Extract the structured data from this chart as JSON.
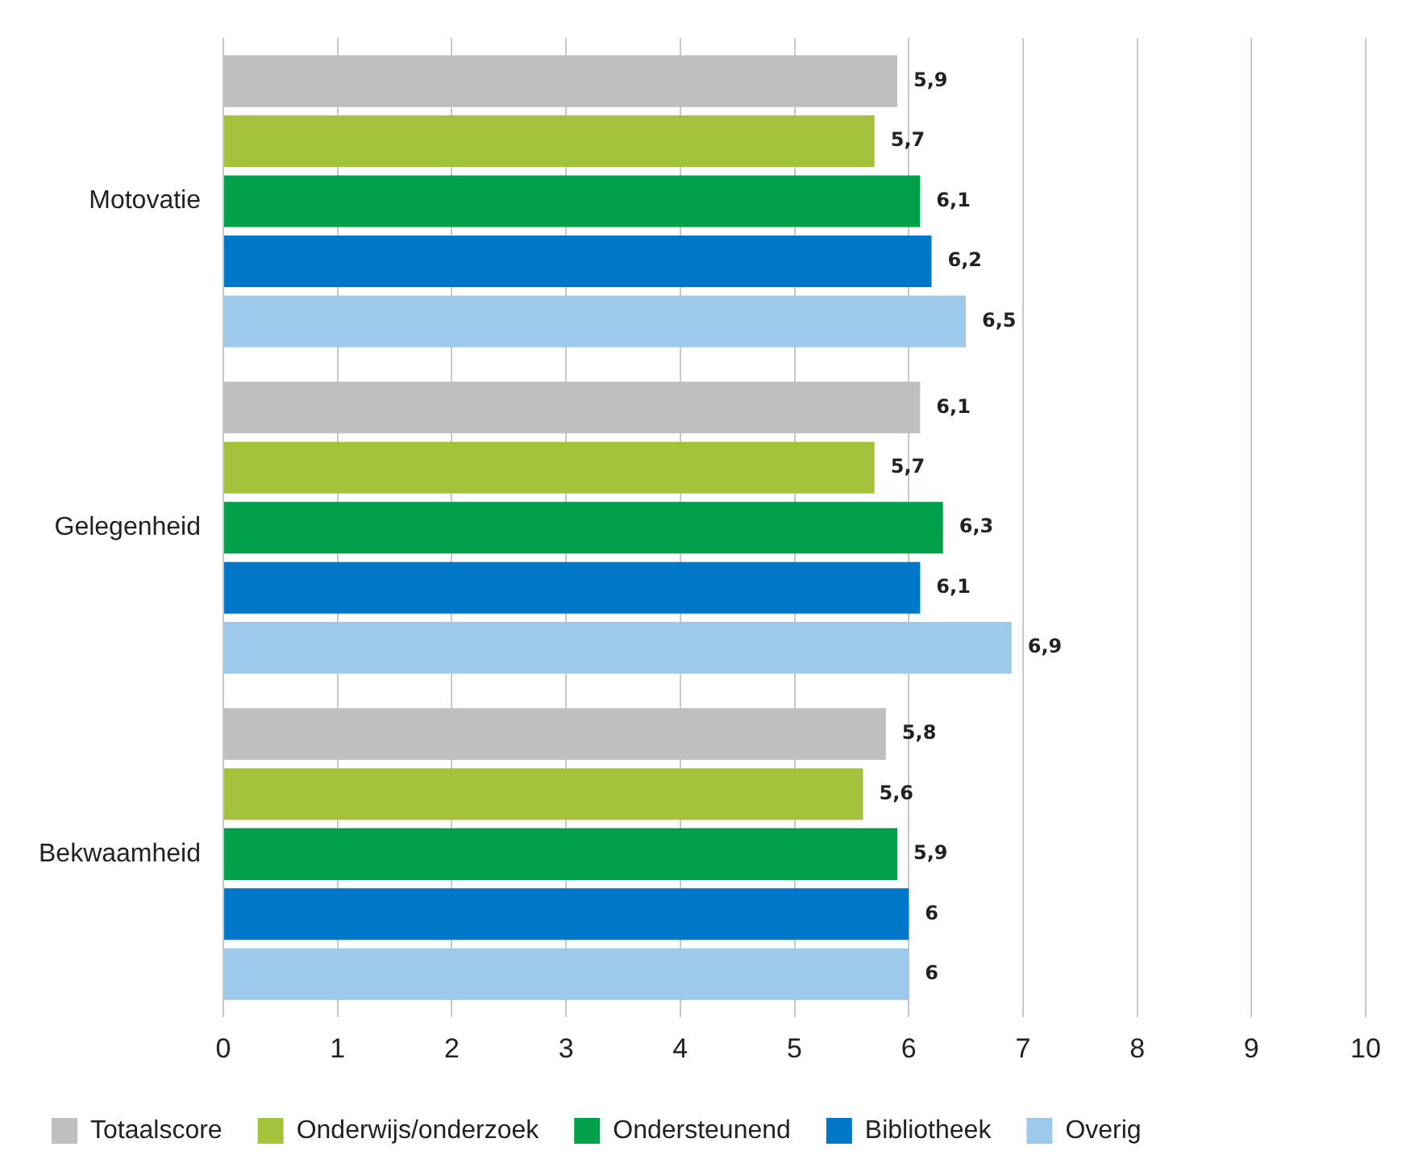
{
  "chart_data": {
    "type": "bar",
    "orientation": "horizontal",
    "categories": [
      "Motovatie",
      "Gelegenheid",
      "Bekwaamheid"
    ],
    "series": [
      {
        "name": "Totaalscore",
        "color": "#bfbfbf",
        "values": [
          5.9,
          6.1,
          5.8
        ],
        "value_labels": [
          "5,9",
          "6,1",
          "5,8"
        ]
      },
      {
        "name": "Onderwijs/onderzoek",
        "color": "#a5c23c",
        "values": [
          5.7,
          5.7,
          5.6
        ],
        "value_labels": [
          "5,7",
          "5,7",
          "5,6"
        ]
      },
      {
        "name": "Ondersteunend",
        "color": "#00a04b",
        "values": [
          6.1,
          6.3,
          5.9
        ],
        "value_labels": [
          "6,1",
          "6,3",
          "5,9"
        ]
      },
      {
        "name": "Bibliotheek",
        "color": "#0077c8",
        "values": [
          6.2,
          6.1,
          6
        ],
        "value_labels": [
          "6,2",
          "6,1",
          "6"
        ]
      },
      {
        "name": "Overig",
        "color": "#9dc9ea",
        "values": [
          6.5,
          6.9,
          6
        ],
        "value_labels": [
          "6,5",
          "6,9",
          "6"
        ]
      }
    ],
    "xlim": [
      0,
      10
    ],
    "xticks": [
      0,
      1,
      2,
      3,
      4,
      5,
      6,
      7,
      8,
      9,
      10
    ],
    "grid": "x",
    "legend": "bottom"
  }
}
